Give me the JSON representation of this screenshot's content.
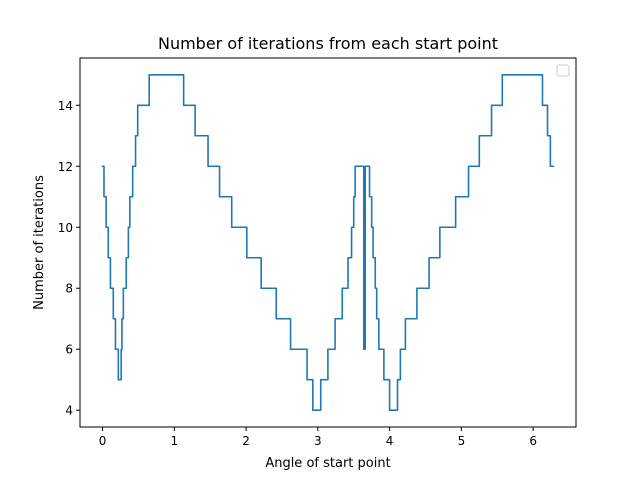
{
  "chart_data": {
    "type": "line",
    "title": "Number of iterations from each start point",
    "xlabel": "Angle of start point",
    "ylabel": "Number of iterations",
    "xlim": [
      -0.314,
      6.597
    ],
    "ylim": [
      3.45,
      15.55
    ],
    "xticks": [
      0,
      1,
      2,
      3,
      4,
      5,
      6
    ],
    "xtick_labels": [
      "0",
      "1",
      "2",
      "3",
      "4",
      "5",
      "6"
    ],
    "yticks": [
      4,
      6,
      8,
      10,
      12,
      14
    ],
    "ytick_labels": [
      "4",
      "6",
      "8",
      "10",
      "12",
      "14"
    ],
    "grid": false,
    "legend": "upper-right, empty",
    "series": [
      {
        "color": "#1f77b4",
        "x": [
          0.0,
          0.02,
          0.02,
          0.05,
          0.05,
          0.08,
          0.08,
          0.11,
          0.11,
          0.15,
          0.15,
          0.18,
          0.18,
          0.22,
          0.22,
          0.26,
          0.26,
          0.27,
          0.27,
          0.29,
          0.29,
          0.33,
          0.33,
          0.36,
          0.36,
          0.38,
          0.38,
          0.42,
          0.42,
          0.46,
          0.46,
          0.49,
          0.49,
          0.53,
          0.53,
          0.57,
          0.57,
          0.61,
          0.61,
          0.65,
          0.65,
          0.73,
          0.73,
          1.13,
          1.13,
          1.29,
          1.29,
          1.47,
          1.47,
          1.63,
          1.63,
          1.8,
          1.8,
          2.01,
          2.01,
          2.21,
          2.21,
          2.42,
          2.42,
          2.62,
          2.62,
          2.85,
          2.85,
          2.93,
          2.93,
          3.04,
          3.04,
          3.14,
          3.14,
          3.24,
          3.24,
          3.34,
          3.34,
          3.42,
          3.42,
          3.47,
          3.47,
          3.5,
          3.5,
          3.52,
          3.52,
          3.54,
          3.54,
          3.57,
          3.57,
          3.61,
          3.61,
          3.64,
          3.64,
          3.66,
          3.66,
          3.7,
          3.7,
          3.72,
          3.72,
          3.75,
          3.75,
          3.77,
          3.77,
          3.8,
          3.8,
          3.82,
          3.82,
          3.85,
          3.85,
          3.88,
          3.88,
          3.92,
          3.92,
          4.0,
          4.0,
          4.11,
          4.11,
          4.15,
          4.15,
          4.22,
          4.22,
          4.38,
          4.38,
          4.55,
          4.55,
          4.7,
          4.7,
          4.92,
          4.92,
          5.1,
          5.1,
          5.25,
          5.25,
          5.42,
          5.42,
          5.57,
          5.57,
          5.72,
          5.72,
          6.13,
          6.13,
          6.2,
          6.2,
          6.24,
          6.24,
          6.28
        ],
        "y": [
          12,
          12,
          11,
          11,
          10,
          10,
          9,
          9,
          8,
          8,
          7,
          7,
          6,
          6,
          5,
          5,
          6,
          6,
          7,
          7,
          8,
          8,
          9,
          9,
          10,
          10,
          11,
          11,
          12,
          12,
          13,
          13,
          14,
          14,
          14,
          14,
          14,
          14,
          14,
          14,
          15,
          15,
          15,
          15,
          14,
          14,
          13,
          13,
          12,
          12,
          11,
          11,
          10,
          10,
          9,
          9,
          8,
          8,
          7,
          7,
          6,
          6,
          5,
          5,
          4,
          4,
          5,
          5,
          6,
          6,
          7,
          7,
          8,
          8,
          9,
          9,
          10,
          10,
          11,
          11,
          12,
          12,
          12,
          12,
          12,
          12,
          12,
          12,
          6,
          6,
          12,
          12,
          12,
          12,
          11,
          11,
          10,
          10,
          9,
          9,
          8,
          8,
          7,
          7,
          6,
          6,
          6,
          6,
          5,
          5,
          4,
          4,
          5,
          5,
          6,
          6,
          7,
          7,
          8,
          8,
          9,
          9,
          10,
          10,
          11,
          11,
          12,
          12,
          13,
          13,
          14,
          14,
          15,
          15,
          15,
          15,
          14,
          14,
          13,
          13,
          12,
          12
        ]
      }
    ]
  }
}
